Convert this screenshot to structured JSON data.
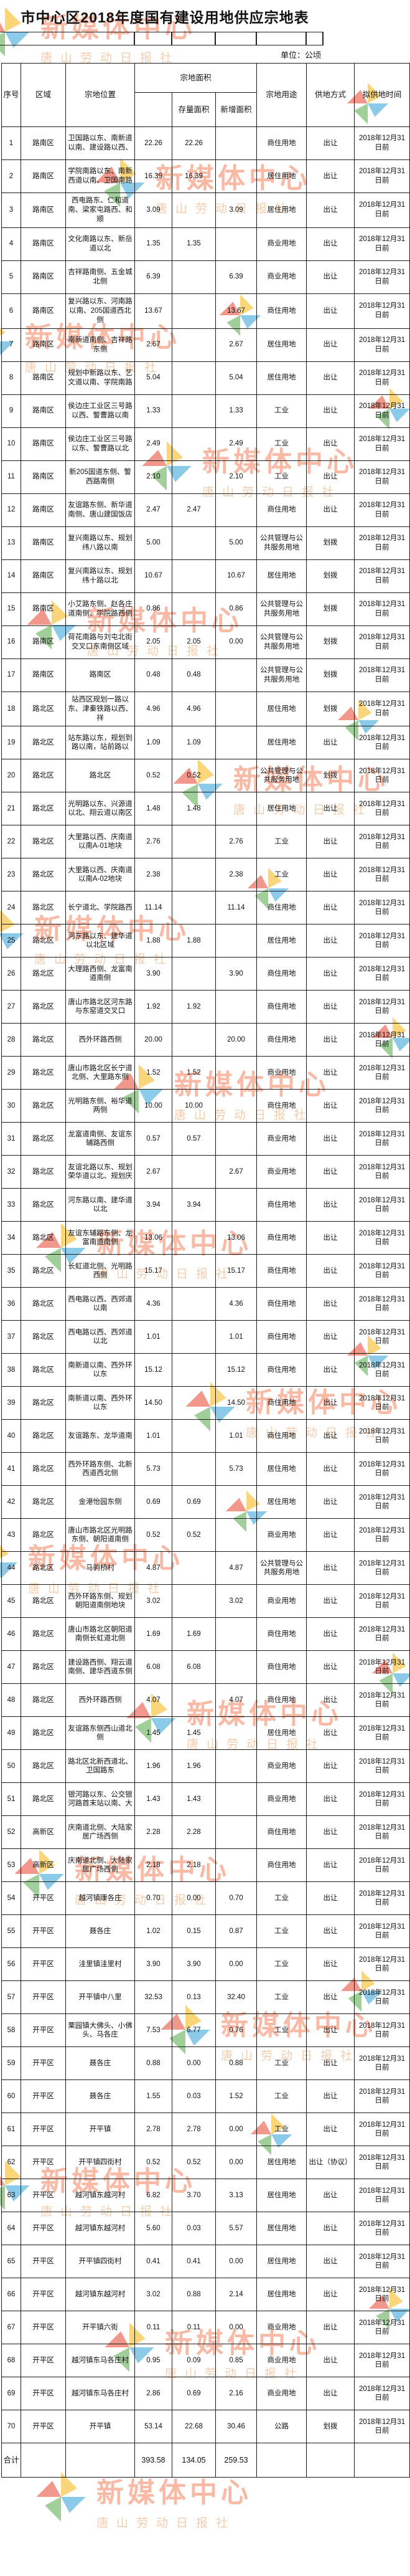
{
  "doc": {
    "title": "市中心区2018年度国有建设用地供应宗地表",
    "unit_note": "单位：公顷"
  },
  "watermark": {
    "text": "新媒体中心",
    "subtext": "唐山劳动日报社",
    "colors": {
      "primary": "#f25a2b",
      "secondary": "#ef9d5b",
      "blue": "#2f9fd8",
      "yellow": "#f6b40e",
      "green": "#56a848",
      "red": "#e8432e"
    }
  },
  "table": {
    "headers": {
      "no": "序号",
      "district": "区域",
      "location": "宗地位置",
      "area_group": "宗地面积",
      "existing": "存量面积",
      "added": "新增面积",
      "use": "宗地用途",
      "method": "供地方式",
      "time": "拟供地时间"
    },
    "rows": [
      [
        "1",
        "路南区",
        "卫国路以东、南新道以南、建设路以西、",
        "22.26",
        "22.26",
        "",
        "商住用地",
        "出让",
        "2018年12月31日前"
      ],
      [
        "2",
        "路南区",
        "学院南路以东、南新西道以南、卫国南路",
        "16.39",
        "16.39",
        "",
        "居住用地",
        "出让",
        "2018年12月31日前"
      ],
      [
        "3",
        "路南区",
        "西电路东、仁和道南、梁家屯路西、和顺",
        "3.09",
        "",
        "3.09",
        "居住用地",
        "出让",
        "2018年12月31日前"
      ],
      [
        "4",
        "路南区",
        "文化南路以东、新岳道以北",
        "1.35",
        "1.35",
        "",
        "商业用地",
        "出让",
        "2018年12月31日前"
      ],
      [
        "5",
        "路南区",
        "吉祥路南侧、五金城北侧",
        "6.39",
        "",
        "6.39",
        "商业用地",
        "出让",
        "2018年12月31日前"
      ],
      [
        "6",
        "路南区",
        "复兴路以东、河南路以南、205国道西北侧",
        "13.67",
        "",
        "13.67",
        "商住用地",
        "出让",
        "2018年12月31日前"
      ],
      [
        "7",
        "路南区",
        "南新道南侧、吉祥路东侧",
        "2.67",
        "",
        "2.67",
        "居住用地",
        "出让",
        "2018年12月31日前"
      ],
      [
        "8",
        "路南区",
        "规划中新路以东、艺文道以南、学院南路",
        "5.04",
        "",
        "5.04",
        "居住用地",
        "出让",
        "2018年12月31日前"
      ],
      [
        "9",
        "路南区",
        "侯边庄工业区三号路以西、警曹路以南",
        "1.33",
        "",
        "1.33",
        "工业",
        "出让",
        "2018年12月31日前"
      ],
      [
        "10",
        "路南区",
        "侯边庄工业区三号路以东、警曹路以北",
        "2.49",
        "",
        "2.49",
        "工业",
        "出让",
        "2018年12月31日前"
      ],
      [
        "11",
        "路南区",
        "新205国道东侧、警西路南侧",
        "2.10",
        "",
        "2.10",
        "工业",
        "出让",
        "2018年12月31日前"
      ],
      [
        "12",
        "路南区",
        "友谊路东侧、新华道南侧、唐山建国饭店",
        "2.47",
        "2.47",
        "",
        "商住用地",
        "出让",
        "2018年12月31日前"
      ],
      [
        "13",
        "路南区",
        "复兴南路以东、规划纬八路以南",
        "5.00",
        "",
        "5.00",
        "公共管理与公共服务用地",
        "划拨",
        "2018年12月31日前"
      ],
      [
        "14",
        "路南区",
        "复兴南路以东、规划纬十路以北",
        "10.67",
        "",
        "10.67",
        "居住用地",
        "划拨",
        "2018年12月31日前"
      ],
      [
        "15",
        "路南区",
        "小艾路东侧、赵各庄道南侧、学院路西侧",
        "0.86",
        "",
        "0.86",
        "公共管理与公共服务用地",
        "划拨",
        "2018年12月31日前"
      ],
      [
        "16",
        "路南区",
        "荷花南路与刘屯北街交叉口东南侧区域",
        "2.05",
        "2.05",
        "0.00",
        "公共管理与公共服务用地",
        "划拨",
        "2018年12月31日前"
      ],
      [
        "17",
        "路南区",
        "路南区",
        "0.48",
        "0.48",
        "",
        "公共管理与公共服务用地",
        "划拨",
        "2018年12月31日前"
      ],
      [
        "18",
        "路北区",
        "站西区规划一路以东、津秦铁路以西、祥",
        "4.96",
        "4.96",
        "",
        "居住用地",
        "划拨",
        "2018年12月31日前"
      ],
      [
        "19",
        "路北区",
        "站东路以东，规划到路以南，站前路以",
        "1.09",
        "1.09",
        "",
        "居住用地",
        "出让",
        "2018年12月31日前"
      ],
      [
        "20",
        "路北区",
        "路北区",
        "0.52",
        "0.52",
        "",
        "公共管理与公共服务用地",
        "划拨",
        "2018年12月31日前"
      ],
      [
        "21",
        "路北区",
        "光明路以东、兴源道以北、翔云道以南区",
        "1.48",
        "1.48",
        "",
        "居住用地",
        "出让",
        "2018年12月31日前"
      ],
      [
        "22",
        "路北区",
        "大里路以西、庆南道以南A-01地块",
        "2.76",
        "",
        "2.76",
        "工业",
        "出让",
        "2018年12月31日前"
      ],
      [
        "23",
        "路北区",
        "大里路以西、庆南道以南A-02地块",
        "2.38",
        "",
        "2.38",
        "工业",
        "出让",
        "2018年12月31日前"
      ],
      [
        "24",
        "路北区",
        "长宁道北、学院路西",
        "11.14",
        "",
        "11.14",
        "商住用地",
        "出让",
        "2018年12月31日前"
      ],
      [
        "25",
        "路北区",
        "河东路以东、建华道以北区域",
        "1.88",
        "1.88",
        "",
        "居住用地",
        "出让",
        "2018年12月31日前"
      ],
      [
        "26",
        "路北区",
        "大理路西侧、龙富南道南侧",
        "3.90",
        "",
        "3.90",
        "商住用地",
        "出让",
        "2018年12月31日前"
      ],
      [
        "27",
        "路北区",
        "唐山市路北区河东路与东窑道交叉口",
        "1.92",
        "1.92",
        "",
        "商住用地",
        "出让",
        "2018年12月31日前"
      ],
      [
        "28",
        "路北区",
        "西外环路西侧",
        "20.00",
        "",
        "20.00",
        "商住用地",
        "出让",
        "2018年12月31日前"
      ],
      [
        "29",
        "路北区",
        "唐山市路北区长宁道北侧、大里路东侧",
        "1.52",
        "1.52",
        "",
        "商业用地",
        "出让",
        "2018年12月31日前"
      ],
      [
        "30",
        "路北区",
        "光明路东侧、裕华道两侧",
        "10.00",
        "10.00",
        "",
        "商住用地",
        "出让",
        "2018年12月31日前"
      ],
      [
        "31",
        "路北区",
        "龙富道南侧、友谊东辅路西侧",
        "0.57",
        "0.57",
        "",
        "商业用地",
        "出让",
        "2018年12月31日前"
      ],
      [
        "32",
        "路北区",
        "友谊北路以东、规划荣华道以北、规划庆",
        "2.67",
        "",
        "2.67",
        "商业用地",
        "出让",
        "2018年12月31日前"
      ],
      [
        "33",
        "路北区",
        "河东路以南、建华道以北",
        "3.94",
        "3.94",
        "",
        "商住用地",
        "出让",
        "2018年12月31日前"
      ],
      [
        "34",
        "路北区",
        "友谊东辅路东侧、龙富南道南侧",
        "13.06",
        "",
        "13.06",
        "商住用地",
        "出让",
        "2018年12月31日前"
      ],
      [
        "35",
        "路北区",
        "长虹道北侧、光明路西侧",
        "15.17",
        "",
        "15.17",
        "商住用地",
        "出让",
        "2018年12月31日前"
      ],
      [
        "36",
        "路北区",
        "西电路以西、西郊道以南",
        "4.36",
        "",
        "4.36",
        "商住用地",
        "出让",
        "2018年12月31日前"
      ],
      [
        "37",
        "路北区",
        "西电路以西、西郊道以北",
        "1.01",
        "",
        "1.01",
        "商住用地",
        "出让",
        "2018年12月31日前"
      ],
      [
        "38",
        "路北区",
        "南新道以南、西外环以东",
        "15.12",
        "",
        "15.12",
        "商住用地",
        "出让",
        "2018年12月31日前"
      ],
      [
        "39",
        "路北区",
        "南新道以南、西外环以东",
        "14.50",
        "",
        "14.50",
        "商住用地",
        "出让",
        "2018年12月31日前"
      ],
      [
        "40",
        "路北区",
        "友谊路东、龙华道南",
        "1.01",
        "",
        "1.01",
        "商住用地",
        "出让",
        "2018年12月31日前"
      ],
      [
        "41",
        "路北区",
        "西外环路东侧、北新西道西北侧",
        "5.73",
        "",
        "5.73",
        "居住用地",
        "出让",
        "2018年12月31日前"
      ],
      [
        "42",
        "路北区",
        "金港怡园东侧",
        "0.69",
        "0.69",
        "",
        "居住用地",
        "出让",
        "2018年12月31日前"
      ],
      [
        "43",
        "路北区",
        "唐山市路北区光明路东侧、朝阳道南侧",
        "0.52",
        "0.52",
        "",
        "商业用地",
        "出让",
        "2018年12月31日前"
      ],
      [
        "44",
        "路北区",
        "马驹桥村",
        "4.87",
        "",
        "4.87",
        "公共管理与公共服务用地",
        "出让",
        "2018年12月31日前"
      ],
      [
        "45",
        "路北区",
        "西外环路东侧、规划朝阳道南侧地块",
        "3.02",
        "",
        "3.02",
        "商业用地",
        "出让",
        "2018年12月31日前"
      ],
      [
        "46",
        "路北区",
        "唐山市路北区朝阳道南侧长虹道北侧",
        "1.69",
        "1.69",
        "",
        "商住用地",
        "出让",
        "2018年12月31日前"
      ],
      [
        "47",
        "路北区",
        "建设路西侧、翔云道南侧、建华西道东侧",
        "6.08",
        "6.08",
        "",
        "商住用地",
        "出让",
        "2018年12月31日前"
      ],
      [
        "48",
        "路北区",
        "西外环路西侧",
        "4.07",
        "",
        "4.07",
        "商住用地",
        "出让",
        "2018年12月31日前"
      ],
      [
        "49",
        "路北区",
        "友谊路东侧西山道北侧",
        "1.45",
        "1.45",
        "",
        "居住用地",
        "出让",
        "2018年12月31日前"
      ],
      [
        "50",
        "路北区",
        "路北区北新西道北、卫国路东",
        "1.96",
        "1.96",
        "",
        "商业用地",
        "出让",
        "2018年12月31日前"
      ],
      [
        "51",
        "路北区",
        "银河路以东、公交银河路首末站以南、大",
        "1.43",
        "1.43",
        "",
        "商业用地",
        "出让",
        "2018年12月31日前"
      ],
      [
        "52",
        "高新区",
        "庆南道北侧、大陆家居广场西侧",
        "2.28",
        "2.28",
        "",
        "商住用地",
        "出让",
        "2018年12月31日前"
      ],
      [
        "53",
        "高新区",
        "庆南道北侧、大陆家居广场西侧",
        "2.18",
        "2.18",
        "",
        "商住用地",
        "出让",
        "2018年12月31日前"
      ],
      [
        "54",
        "开平区",
        "越河镇康各庄",
        "0.70",
        "0.00",
        "0.70",
        "工业",
        "出让",
        "2018年12月31日前"
      ],
      [
        "55",
        "开平区",
        "聂各庄",
        "1.02",
        "0.15",
        "0.87",
        "工业",
        "出让",
        "2018年12月31日前"
      ],
      [
        "56",
        "开平区",
        "洼里镇洼里村",
        "3.90",
        "3.90",
        "0.00",
        "工业",
        "出让",
        "2018年12月31日前"
      ],
      [
        "57",
        "开平区",
        "开平镇中八里",
        "32.53",
        "0.13",
        "32.40",
        "工业",
        "出让",
        "2018年12月31日前"
      ],
      [
        "58",
        "开平区",
        "栗园镇大佛头、小佛头、马各庄",
        "7.53",
        "6.77",
        "0.76",
        "工业",
        "出让",
        "2018年12月31日前"
      ],
      [
        "59",
        "开平区",
        "聂各庄",
        "0.88",
        "0.00",
        "0.88",
        "工业",
        "出让",
        "2018年12月31日前"
      ],
      [
        "60",
        "开平区",
        "聂各庄",
        "1.55",
        "0.03",
        "1.52",
        "工业",
        "出让",
        "2018年12月31日前"
      ],
      [
        "61",
        "开平区",
        "开平镇",
        "2.78",
        "2.78",
        "0.00",
        "工业",
        "出让",
        "2018年12月31日前"
      ],
      [
        "62",
        "开平区",
        "开平镇四街村",
        "0.52",
        "0.52",
        "0.00",
        "居住用地",
        "出让（协议）",
        "2018年12月31日前"
      ],
      [
        "63",
        "开平区",
        "越河镇东越河村",
        "6.82",
        "3.70",
        "3.13",
        "居住用地",
        "出让",
        "2018年12月31日前"
      ],
      [
        "64",
        "开平区",
        "越河镇东越河村",
        "5.60",
        "0.03",
        "5.57",
        "居住用地",
        "出让",
        "2018年12月31日前"
      ],
      [
        "65",
        "开平区",
        "开平镇四街村",
        "0.41",
        "0.41",
        "0.00",
        "居住用地",
        "出让",
        "2018年12月31日前"
      ],
      [
        "66",
        "开平区",
        "越河镇东越河村",
        "3.02",
        "0.88",
        "2.14",
        "居住用地",
        "出让",
        "2018年12月31日前"
      ],
      [
        "67",
        "开平区",
        "开平镇六街",
        "0.11",
        "0.11",
        "0.00",
        "商业用地",
        "出让",
        "2018年12月31日前"
      ],
      [
        "68",
        "开平区",
        "越河镇东马各庄村",
        "0.95",
        "0.09",
        "0.85",
        "商业用地",
        "出让",
        "2018年12月31日前"
      ],
      [
        "69",
        "开平区",
        "越河镇东马各庄村",
        "2.86",
        "0.69",
        "2.16",
        "商业用地",
        "出让",
        "2018年12月31日前"
      ],
      [
        "70",
        "开平区",
        "开平镇",
        "53.14",
        "22.68",
        "30.46",
        "公路",
        "划拨",
        "2018年12月31日前"
      ]
    ],
    "total": {
      "label": "合计",
      "total": "393.58",
      "existing": "134.05",
      "added": "259.53"
    }
  }
}
